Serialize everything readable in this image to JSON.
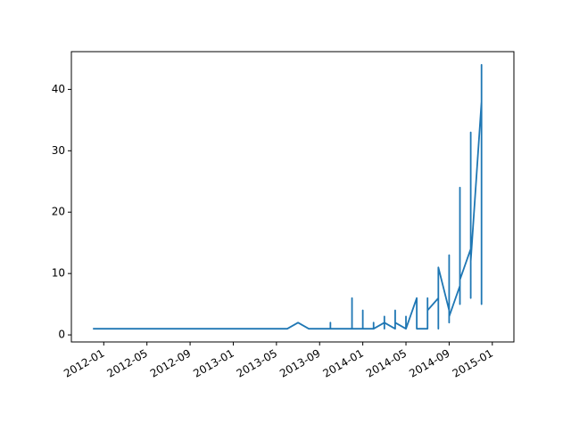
{
  "chart_data": {
    "type": "line",
    "x": [
      "2011-12",
      "2013-06",
      "2013-07",
      "2013-08",
      "2013-10",
      "2013-10",
      "2013-10",
      "2013-12",
      "2013-12",
      "2013-12",
      "2014-01",
      "2014-01",
      "2014-01",
      "2014-01",
      "2014-01",
      "2014-02",
      "2014-02",
      "2014-02",
      "2014-03",
      "2014-03",
      "2014-03",
      "2014-03",
      "2014-03",
      "2014-04",
      "2014-04",
      "2014-04",
      "2014-04",
      "2014-05",
      "2014-05",
      "2014-05",
      "2014-05",
      "2014-05",
      "2014-06",
      "2014-06",
      "2014-06",
      "2014-06",
      "2014-06",
      "2014-06",
      "2014-06",
      "2014-07",
      "2014-07",
      "2014-07",
      "2014-07",
      "2014-07",
      "2014-07",
      "2014-08",
      "2014-08",
      "2014-08",
      "2014-08",
      "2014-08",
      "2014-08",
      "2014-08",
      "2014-09",
      "2014-09",
      "2014-09",
      "2014-09",
      "2014-09",
      "2014-09",
      "2014-09",
      "2014-10",
      "2014-10",
      "2014-10",
      "2014-10",
      "2014-10",
      "2014-10",
      "2014-10",
      "2014-11",
      "2014-11",
      "2014-11",
      "2014-11",
      "2014-11",
      "2014-11",
      "2014-11",
      "2014-12",
      "2014-12",
      "2014-12",
      "2014-12",
      "2014-12",
      "2014-12"
    ],
    "series": [
      {
        "color": "#1f77b4",
        "values": [
          1,
          1,
          2,
          1,
          1,
          2,
          1,
          1,
          6,
          1,
          1,
          2,
          1,
          4,
          1,
          1,
          2,
          1,
          2,
          1,
          3,
          1,
          2,
          1,
          4,
          1,
          2,
          1,
          3,
          1,
          2,
          1,
          6,
          1,
          5,
          2,
          1,
          4,
          1,
          1,
          5,
          2,
          6,
          1,
          4,
          6,
          1,
          9,
          3,
          10,
          2,
          11,
          4,
          9,
          2,
          10,
          6,
          13,
          3,
          8,
          18,
          5,
          19,
          6,
          24,
          9,
          14,
          30,
          6,
          28,
          10,
          33,
          12,
          38,
          5,
          41,
          18,
          44,
          35
        ]
      }
    ],
    "xlim": [
      "2011-10",
      "2015-03"
    ],
    "xticks": [
      "2012-01",
      "2012-05",
      "2012-09",
      "2013-01",
      "2013-05",
      "2013-09",
      "2014-01",
      "2014-05",
      "2014-09",
      "2015-01"
    ],
    "ylim": [
      -1.15,
      46.15
    ],
    "yticks": [
      0,
      10,
      20,
      30,
      40
    ]
  }
}
